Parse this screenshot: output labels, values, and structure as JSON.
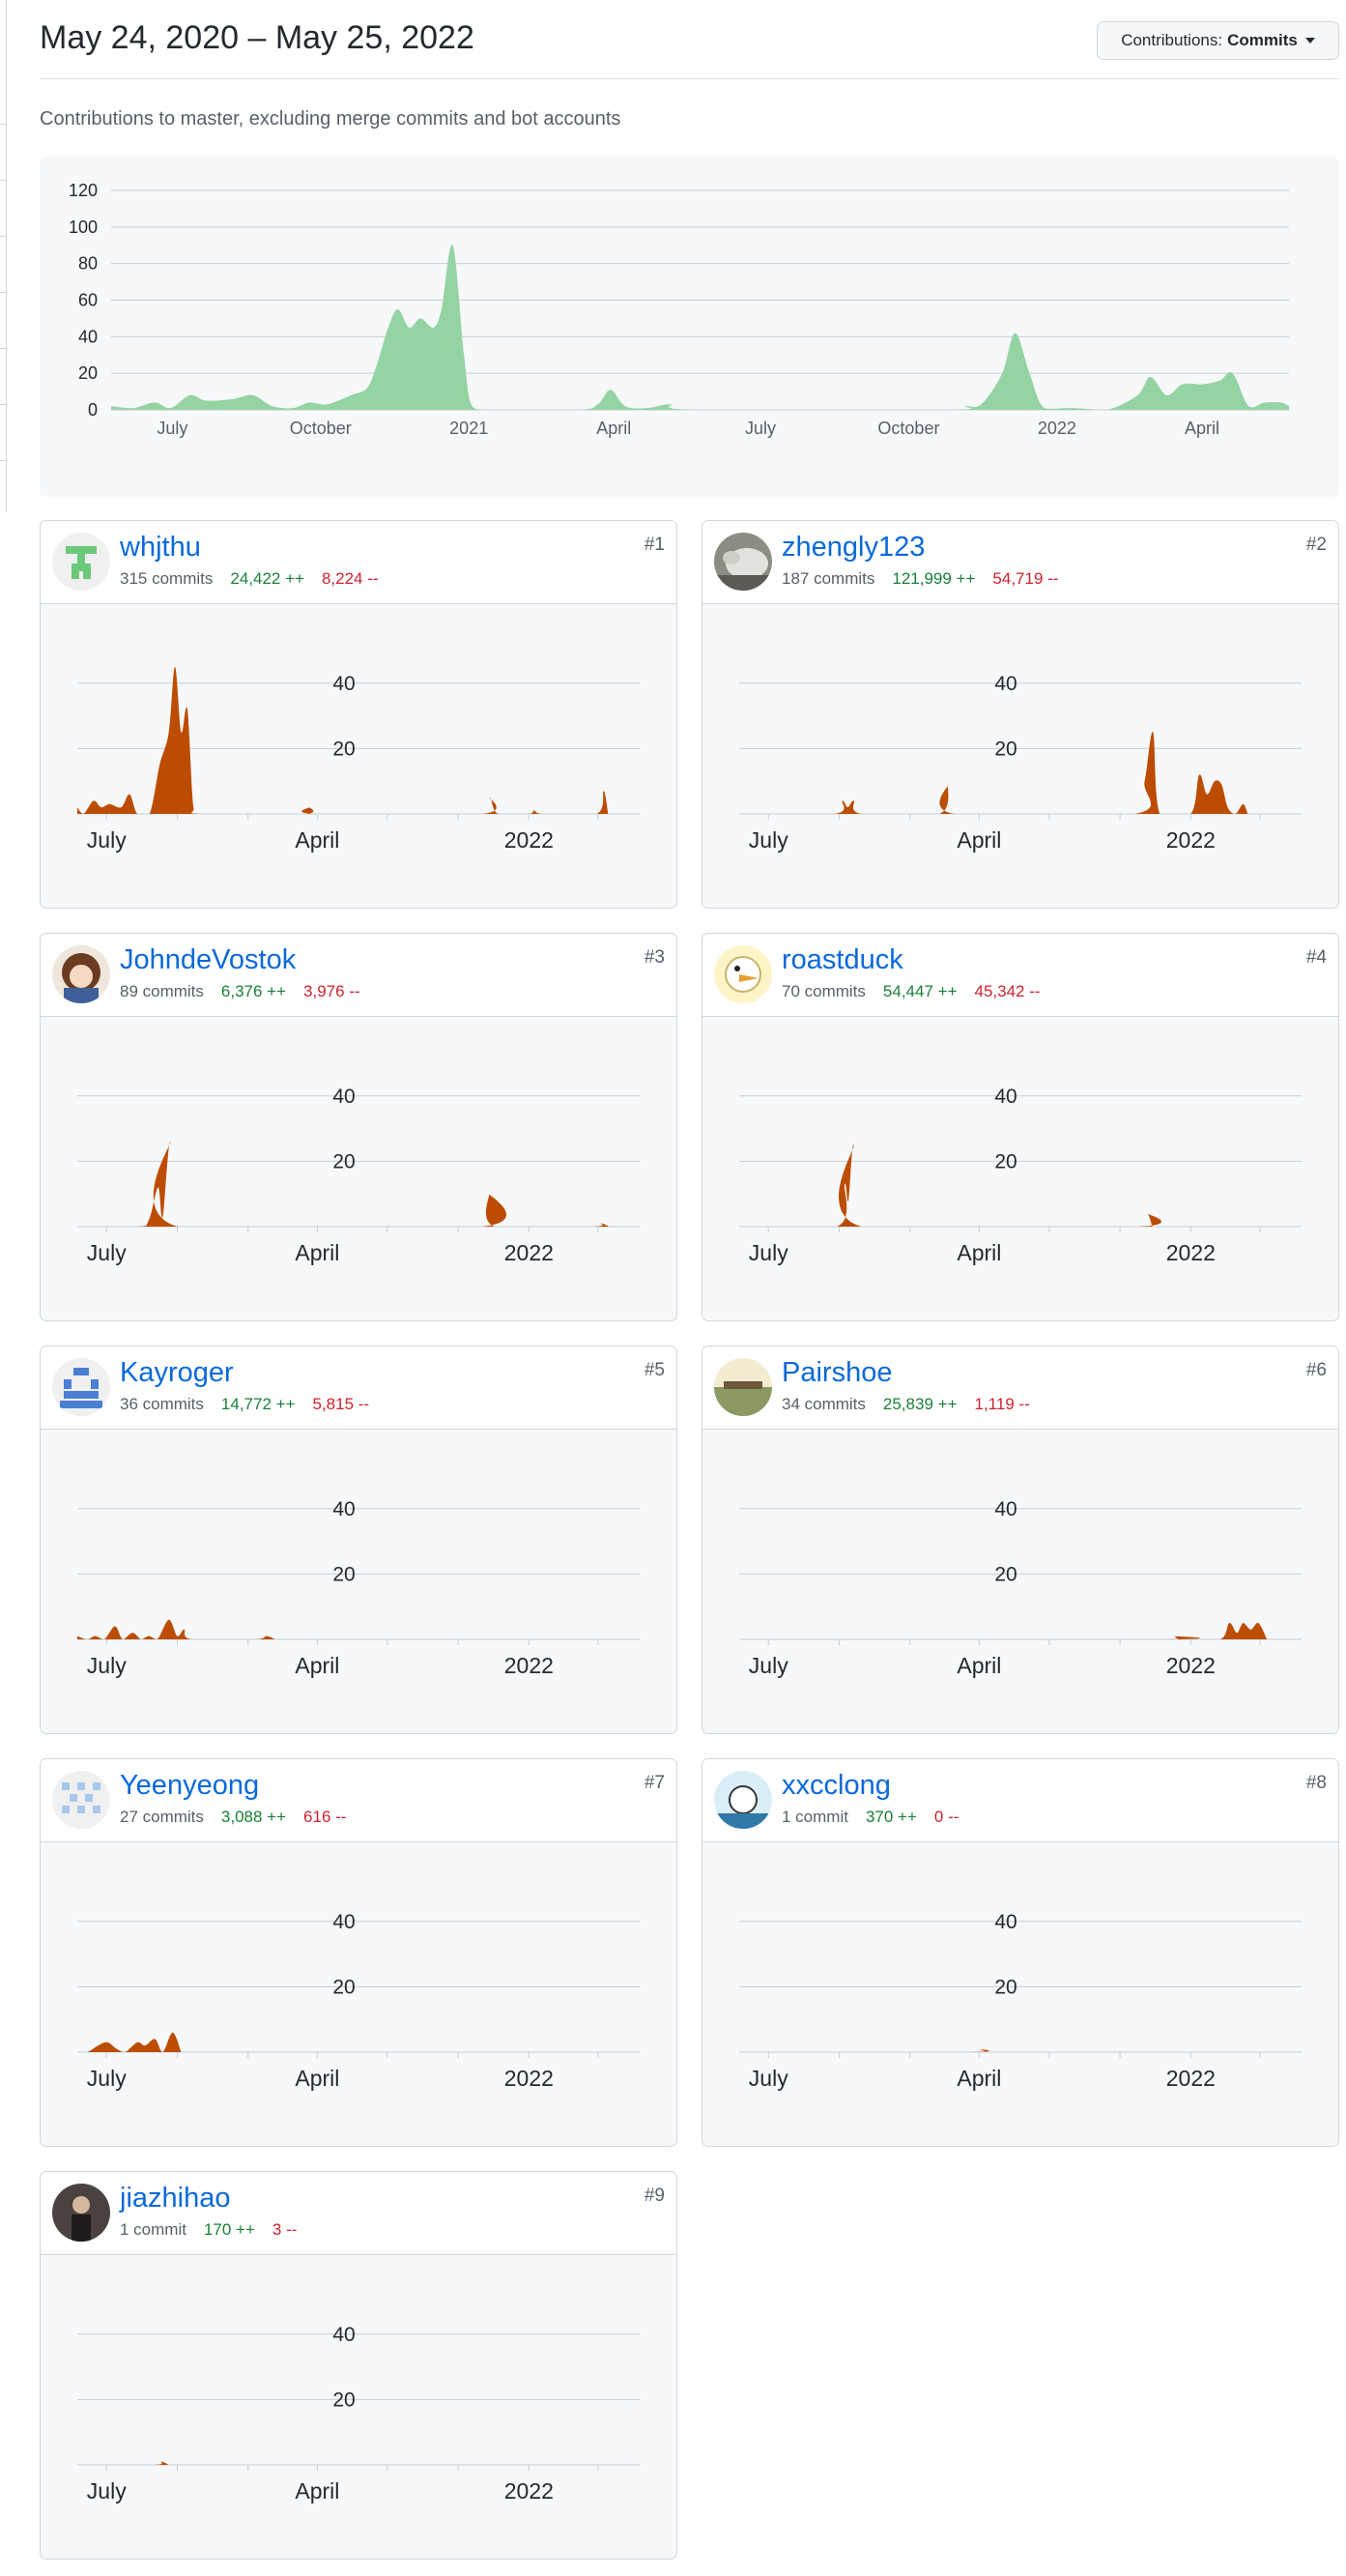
{
  "header": {
    "title": "May 24, 2020 – May 25, 2022",
    "filter_prefix": "Contributions:",
    "filter_value": "Commits",
    "subtitle": "Contributions to master, excluding merge commits and bot accounts"
  },
  "colors": {
    "overview_fill": "#94d3a2",
    "contributor_fill": "#bc4c00",
    "additions": "#1a7f37",
    "deletions": "#cf222e",
    "link": "#0969da"
  },
  "overview": {
    "y_ticks": [
      "120",
      "100",
      "80",
      "60",
      "40",
      "20",
      "0"
    ],
    "x_labels": [
      "July",
      "October",
      "2021",
      "April",
      "July",
      "October",
      "2022",
      "April"
    ]
  },
  "contributor_axis": {
    "y_ticks": [
      "40",
      "20"
    ],
    "x_labels": [
      "July",
      "April",
      "2022"
    ]
  },
  "contributors": [
    {
      "rank": "#1",
      "name": "whjthu",
      "commits": "315 commits",
      "additions": "24,422 ++",
      "deletions": "8,224 --",
      "avatar_icon": "identicon-avatar"
    },
    {
      "rank": "#2",
      "name": "zhengly123",
      "commits": "187 commits",
      "additions": "121,999 ++",
      "deletions": "54,719 --",
      "avatar_icon": "photo-avatar"
    },
    {
      "rank": "#3",
      "name": "JohndeVostok",
      "commits": "89 commits",
      "additions": "6,376 ++",
      "deletions": "3,976 --",
      "avatar_icon": "anime-avatar"
    },
    {
      "rank": "#4",
      "name": "roastduck",
      "commits": "70 commits",
      "additions": "54,447 ++",
      "deletions": "45,342 --",
      "avatar_icon": "duck-avatar"
    },
    {
      "rank": "#5",
      "name": "Kayroger",
      "commits": "36 commits",
      "additions": "14,772 ++",
      "deletions": "5,815 --",
      "avatar_icon": "identicon-avatar"
    },
    {
      "rank": "#6",
      "name": "Pairshoe",
      "commits": "34 commits",
      "additions": "25,839 ++",
      "deletions": "1,119 --",
      "avatar_icon": "landscape-avatar"
    },
    {
      "rank": "#7",
      "name": "Yeenyeong",
      "commits": "27 commits",
      "additions": "3,088 ++",
      "deletions": "616 --",
      "avatar_icon": "identicon-avatar"
    },
    {
      "rank": "#8",
      "name": "xxcclong",
      "commits": "1 commit",
      "additions": "370 ++",
      "deletions": "0 --",
      "avatar_icon": "cartoon-avatar"
    },
    {
      "rank": "#9",
      "name": "jiazhihao",
      "commits": "1 commit",
      "additions": "170 ++",
      "deletions": "3 --",
      "avatar_icon": "person-avatar"
    }
  ],
  "chart_data": [
    {
      "type": "area",
      "title": "",
      "series": [
        {
          "values": [
            [
              "2020-05-24",
              2
            ],
            [
              "2020-06-07",
              1
            ],
            [
              "2020-06-20",
              4
            ],
            [
              "2020-06-30",
              1
            ],
            [
              "2020-07-12",
              8
            ],
            [
              "2020-07-22",
              5
            ],
            [
              "2020-08-08",
              6
            ],
            [
              "2020-08-20",
              8
            ],
            [
              "2020-09-01",
              2
            ],
            [
              "2020-09-14",
              1
            ],
            [
              "2020-09-24",
              4
            ],
            [
              "2020-10-05",
              3
            ],
            [
              "2020-10-20",
              8
            ],
            [
              "2020-10-30",
              12
            ],
            [
              "2020-11-05",
              25
            ],
            [
              "2020-11-12",
              45
            ],
            [
              "2020-11-18",
              55
            ],
            [
              "2020-11-25",
              45
            ],
            [
              "2020-12-02",
              50
            ],
            [
              "2020-12-10",
              45
            ],
            [
              "2020-12-15",
              55
            ],
            [
              "2020-12-22",
              90
            ],
            [
              "2020-12-29",
              30
            ],
            [
              "2021-01-03",
              2
            ],
            [
              "2021-01-15",
              0
            ],
            [
              "2021-03-10",
              0
            ],
            [
              "2021-03-22",
              3
            ],
            [
              "2021-03-30",
              11
            ],
            [
              "2021-04-08",
              2
            ],
            [
              "2021-04-22",
              1
            ],
            [
              "2021-05-06",
              3
            ],
            [
              "2021-05-22",
              0
            ],
            [
              "2021-10-25",
              0
            ],
            [
              "2021-11-05",
              2
            ],
            [
              "2021-11-15",
              3
            ],
            [
              "2021-11-28",
              20
            ],
            [
              "2021-12-06",
              42
            ],
            [
              "2021-12-15",
              20
            ],
            [
              "2021-12-24",
              1
            ],
            [
              "2022-01-10",
              1
            ],
            [
              "2022-02-01",
              0
            ],
            [
              "2022-02-20",
              8
            ],
            [
              "2022-02-28",
              18
            ],
            [
              "2022-03-10",
              8
            ],
            [
              "2022-03-20",
              14
            ],
            [
              "2022-04-01",
              14
            ],
            [
              "2022-04-12",
              16
            ],
            [
              "2022-04-20",
              20
            ],
            [
              "2022-04-30",
              2
            ],
            [
              "2022-05-10",
              4
            ],
            [
              "2022-05-20",
              4
            ],
            [
              "2022-05-25",
              2
            ]
          ]
        }
      ],
      "xlim": [
        "2020-05-24",
        "2022-05-25"
      ],
      "ylim": [
        0,
        120
      ],
      "grid": true
    },
    {
      "type": "area",
      "series": [
        {
          "name": "whjthu",
          "values": [
            [
              "2020-05-24",
              2
            ],
            [
              "2020-06-01",
              0
            ],
            [
              "2020-06-14",
              4
            ],
            [
              "2020-06-24",
              2
            ],
            [
              "2020-07-05",
              3
            ],
            [
              "2020-07-20",
              2
            ],
            [
              "2020-07-31",
              6
            ],
            [
              "2020-08-10",
              0
            ],
            [
              "2020-08-26",
              0
            ],
            [
              "2020-09-08",
              15
            ],
            [
              "2020-09-20",
              25
            ],
            [
              "2020-09-28",
              45
            ],
            [
              "2020-10-06",
              25
            ],
            [
              "2020-10-14",
              32
            ],
            [
              "2020-10-22",
              2
            ],
            [
              "2020-11-01",
              0
            ],
            [
              "2021-03-15",
              0
            ],
            [
              "2021-03-22",
              2
            ],
            [
              "2021-03-30",
              0
            ],
            [
              "2021-11-01",
              0
            ],
            [
              "2021-11-11",
              5
            ],
            [
              "2021-11-22",
              0
            ],
            [
              "2022-01-01",
              0
            ],
            [
              "2022-01-08",
              1
            ],
            [
              "2022-01-20",
              0
            ],
            [
              "2022-03-30",
              0
            ],
            [
              "2022-04-08",
              7
            ],
            [
              "2022-04-14",
              0
            ]
          ]
        }
      ],
      "xlim": [
        "2020-05-24",
        "2022-05-25"
      ],
      "ylim": [
        0,
        50
      ]
    },
    {
      "type": "area",
      "series": [
        {
          "name": "zhengly123",
          "values": [
            [
              "2020-05-24",
              0
            ],
            [
              "2020-09-25",
              0
            ],
            [
              "2020-10-05",
              4
            ],
            [
              "2020-10-12",
              2
            ],
            [
              "2020-10-20",
              4
            ],
            [
              "2020-10-30",
              0
            ],
            [
              "2021-02-08",
              0
            ],
            [
              "2021-02-20",
              9
            ],
            [
              "2021-02-28",
              0
            ],
            [
              "2021-10-20",
              0
            ],
            [
              "2021-11-02",
              10
            ],
            [
              "2021-11-13",
              25
            ],
            [
              "2021-11-22",
              0
            ],
            [
              "2022-01-01",
              0
            ],
            [
              "2022-01-12",
              12
            ],
            [
              "2022-01-22",
              6
            ],
            [
              "2022-02-01",
              10
            ],
            [
              "2022-02-10",
              9
            ],
            [
              "2022-02-18",
              2
            ],
            [
              "2022-02-28",
              0
            ],
            [
              "2022-03-10",
              3
            ],
            [
              "2022-03-16",
              0
            ]
          ]
        }
      ],
      "xlim": [
        "2020-05-24",
        "2022-05-25"
      ],
      "ylim": [
        0,
        50
      ]
    },
    {
      "type": "area",
      "series": [
        {
          "name": "JohndeVostok",
          "values": [
            [
              "2020-05-24",
              0
            ],
            [
              "2020-08-10",
              0
            ],
            [
              "2020-08-25",
              2
            ],
            [
              "2020-09-06",
              12
            ],
            [
              "2020-09-12",
              3
            ],
            [
              "2020-09-22",
              26
            ],
            [
              "2020-10-02",
              0
            ],
            [
              "2021-11-01",
              0
            ],
            [
              "2021-11-10",
              10
            ],
            [
              "2021-11-18",
              0
            ],
            [
              "2022-03-25",
              0
            ],
            [
              "2022-04-05",
              1
            ],
            [
              "2022-04-15",
              0
            ]
          ]
        }
      ],
      "xlim": [
        "2020-05-24",
        "2022-05-25"
      ],
      "ylim": [
        0,
        50
      ]
    },
    {
      "type": "area",
      "series": [
        {
          "name": "roastduck",
          "values": [
            [
              "2020-05-24",
              0
            ],
            [
              "2020-09-28",
              0
            ],
            [
              "2020-10-08",
              13
            ],
            [
              "2020-10-13",
              8
            ],
            [
              "2020-10-20",
              25
            ],
            [
              "2020-10-30",
              0
            ],
            [
              "2021-10-25",
              0
            ],
            [
              "2021-11-05",
              4
            ],
            [
              "2021-11-12",
              0
            ]
          ]
        }
      ],
      "xlim": [
        "2020-05-24",
        "2022-05-25"
      ],
      "ylim": [
        0,
        50
      ]
    },
    {
      "type": "area",
      "series": [
        {
          "name": "Kayroger",
          "values": [
            [
              "2020-05-24",
              1
            ],
            [
              "2020-06-06",
              0
            ],
            [
              "2020-06-16",
              1
            ],
            [
              "2020-06-28",
              0
            ],
            [
              "2020-07-12",
              4
            ],
            [
              "2020-07-22",
              0
            ],
            [
              "2020-08-04",
              2
            ],
            [
              "2020-08-15",
              0
            ],
            [
              "2020-08-25",
              1
            ],
            [
              "2020-09-05",
              0
            ],
            [
              "2020-09-20",
              6
            ],
            [
              "2020-10-01",
              1
            ],
            [
              "2020-10-10",
              3
            ],
            [
              "2020-10-20",
              0
            ],
            [
              "2021-01-10",
              0
            ],
            [
              "2021-01-25",
              1
            ],
            [
              "2021-02-05",
              0
            ]
          ]
        }
      ],
      "xlim": [
        "2020-05-24",
        "2022-05-25"
      ],
      "ylim": [
        0,
        50
      ]
    },
    {
      "type": "area",
      "series": [
        {
          "name": "Pairshoe",
          "values": [
            [
              "2020-05-24",
              0
            ],
            [
              "2021-12-01",
              0
            ],
            [
              "2021-12-10",
              1
            ],
            [
              "2021-12-20",
              0
            ],
            [
              "2022-02-08",
              0
            ],
            [
              "2022-02-20",
              5
            ],
            [
              "2022-03-02",
              2
            ],
            [
              "2022-03-10",
              5
            ],
            [
              "2022-03-20",
              3
            ],
            [
              "2022-03-30",
              5
            ],
            [
              "2022-04-10",
              0
            ]
          ]
        }
      ],
      "xlim": [
        "2020-05-24",
        "2022-05-25"
      ],
      "ylim": [
        0,
        50
      ]
    },
    {
      "type": "area",
      "series": [
        {
          "name": "Yeenyeong",
          "values": [
            [
              "2020-05-24",
              0
            ],
            [
              "2020-06-06",
              0
            ],
            [
              "2020-06-20",
              2
            ],
            [
              "2020-07-02",
              3
            ],
            [
              "2020-07-14",
              1
            ],
            [
              "2020-07-25",
              0
            ],
            [
              "2020-08-10",
              3
            ],
            [
              "2020-08-20",
              2
            ],
            [
              "2020-09-02",
              4
            ],
            [
              "2020-09-12",
              0
            ],
            [
              "2020-09-25",
              6
            ],
            [
              "2020-10-06",
              0
            ]
          ]
        }
      ],
      "xlim": [
        "2020-05-24",
        "2022-05-25"
      ],
      "ylim": [
        0,
        50
      ]
    },
    {
      "type": "area",
      "series": [
        {
          "name": "xxcclong",
          "values": [
            [
              "2020-05-24",
              0
            ],
            [
              "2021-03-20",
              0
            ],
            [
              "2021-03-30",
              1
            ],
            [
              "2021-04-10",
              0
            ]
          ]
        }
      ],
      "xlim": [
        "2020-05-24",
        "2022-05-25"
      ],
      "ylim": [
        0,
        50
      ]
    },
    {
      "type": "area",
      "series": [
        {
          "name": "jiazhihao",
          "values": [
            [
              "2020-05-24",
              0
            ],
            [
              "2020-09-01",
              0
            ],
            [
              "2020-09-10",
              1
            ],
            [
              "2020-09-20",
              0
            ]
          ]
        }
      ],
      "xlim": [
        "2020-05-24",
        "2022-05-25"
      ],
      "ylim": [
        0,
        50
      ]
    }
  ]
}
